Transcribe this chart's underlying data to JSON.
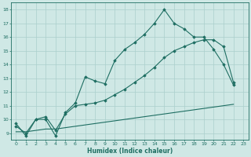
{
  "xlabel": "Humidex (Indice chaleur)",
  "xlim": [
    -0.5,
    23.5
  ],
  "ylim": [
    8.5,
    18.5
  ],
  "xticks": [
    0,
    1,
    2,
    3,
    4,
    5,
    6,
    7,
    8,
    9,
    10,
    11,
    12,
    13,
    14,
    15,
    16,
    17,
    18,
    19,
    20,
    21,
    22,
    23
  ],
  "yticks": [
    9,
    10,
    11,
    12,
    13,
    14,
    15,
    16,
    17,
    18
  ],
  "bg_color": "#cfe8e5",
  "grid_color": "#aacfcc",
  "line_color": "#1e6e62",
  "line1_x": [
    0,
    1,
    2,
    3,
    4,
    5,
    6,
    7,
    8,
    9,
    10,
    11,
    12,
    13,
    14,
    15,
    16,
    17,
    18,
    19,
    20,
    21,
    22
  ],
  "line1_y": [
    9.7,
    8.8,
    10.0,
    10.0,
    8.8,
    10.5,
    11.2,
    13.1,
    12.8,
    12.6,
    14.3,
    15.1,
    15.6,
    16.2,
    17.0,
    18.0,
    17.0,
    16.6,
    16.0,
    16.0,
    15.1,
    14.0,
    12.5
  ],
  "line2_x": [
    0,
    1,
    2,
    3,
    4,
    5,
    6,
    7,
    8,
    9,
    10,
    11,
    12,
    13,
    14,
    15,
    16,
    17,
    18,
    19,
    20,
    21,
    22
  ],
  "line2_y": [
    9.5,
    9.0,
    10.0,
    10.2,
    9.2,
    10.4,
    11.0,
    11.1,
    11.2,
    11.4,
    11.8,
    12.2,
    12.7,
    13.2,
    13.8,
    14.5,
    15.0,
    15.3,
    15.6,
    15.8,
    15.8,
    15.3,
    12.7
  ],
  "line3_x": [
    0,
    1,
    2,
    3,
    4,
    5,
    6,
    7,
    8,
    9,
    10,
    11,
    12,
    13,
    14,
    15,
    16,
    17,
    18,
    19,
    20,
    21,
    22
  ],
  "line3_y": [
    9.1,
    9.1,
    9.2,
    9.3,
    9.3,
    9.4,
    9.5,
    9.6,
    9.7,
    9.8,
    9.9,
    10.0,
    10.1,
    10.2,
    10.3,
    10.4,
    10.5,
    10.6,
    10.7,
    10.8,
    10.9,
    11.0,
    11.1
  ]
}
